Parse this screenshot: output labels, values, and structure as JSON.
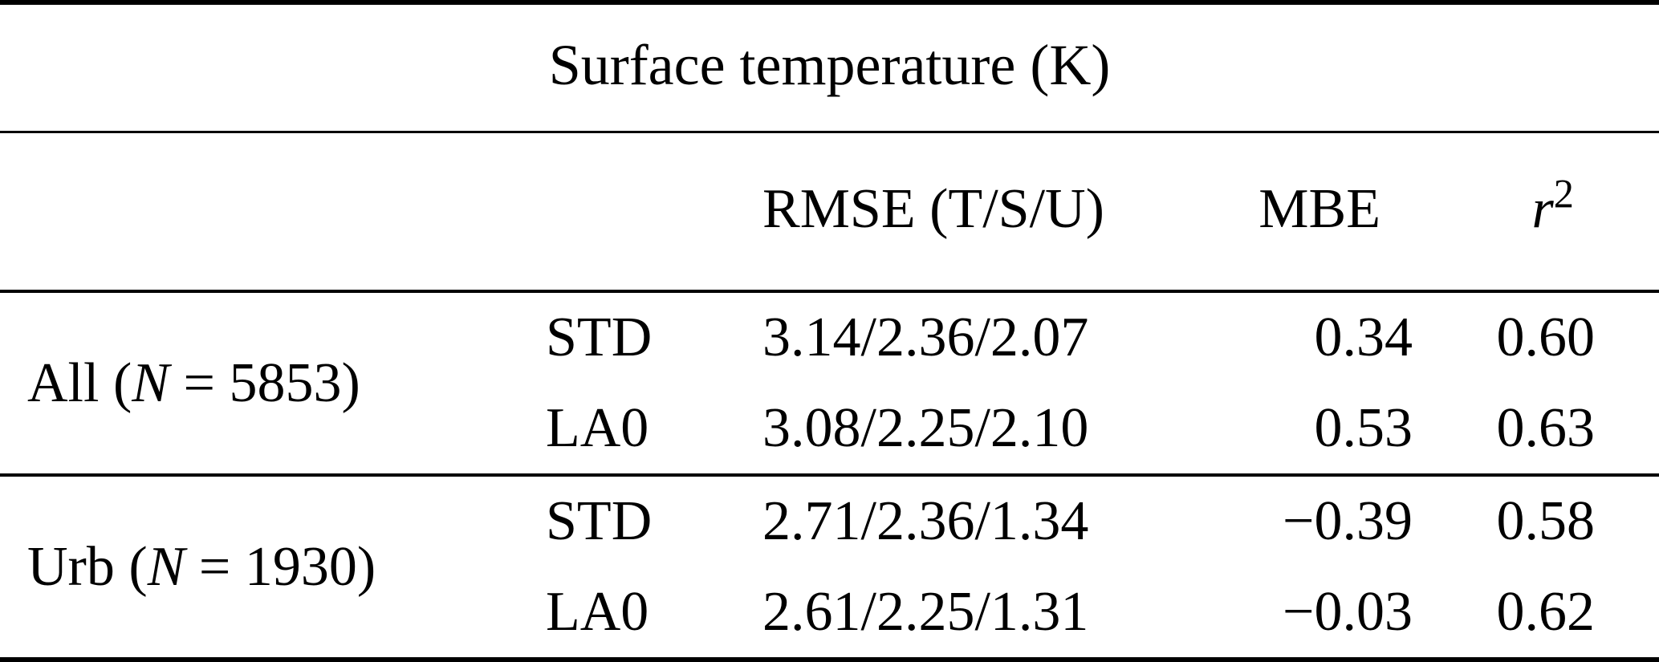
{
  "table": {
    "title": "Surface temperature (K)",
    "columns": {
      "rmse": "RMSE (T/S/U)",
      "mbe": "MBE",
      "r2_base": "r",
      "r2_sup": "2"
    },
    "groups": [
      {
        "label_pre": "All (",
        "label_var": "N",
        "label_post": " = 5853)",
        "rows": [
          {
            "model": "STD",
            "rmse": "3.14/2.36/2.07",
            "mbe": "0.34",
            "r2": "0.60"
          },
          {
            "model": "LA0",
            "rmse": "3.08/2.25/2.10",
            "mbe": "0.53",
            "r2": "0.63"
          }
        ]
      },
      {
        "label_pre": "Urb (",
        "label_var": "N",
        "label_post": " = 1930)",
        "rows": [
          {
            "model": "STD",
            "rmse": "2.71/2.36/1.34",
            "mbe": "−0.39",
            "r2": "0.58"
          },
          {
            "model": "LA0",
            "rmse": "2.61/2.25/1.31",
            "mbe": "−0.03",
            "r2": "0.62"
          }
        ]
      }
    ]
  }
}
